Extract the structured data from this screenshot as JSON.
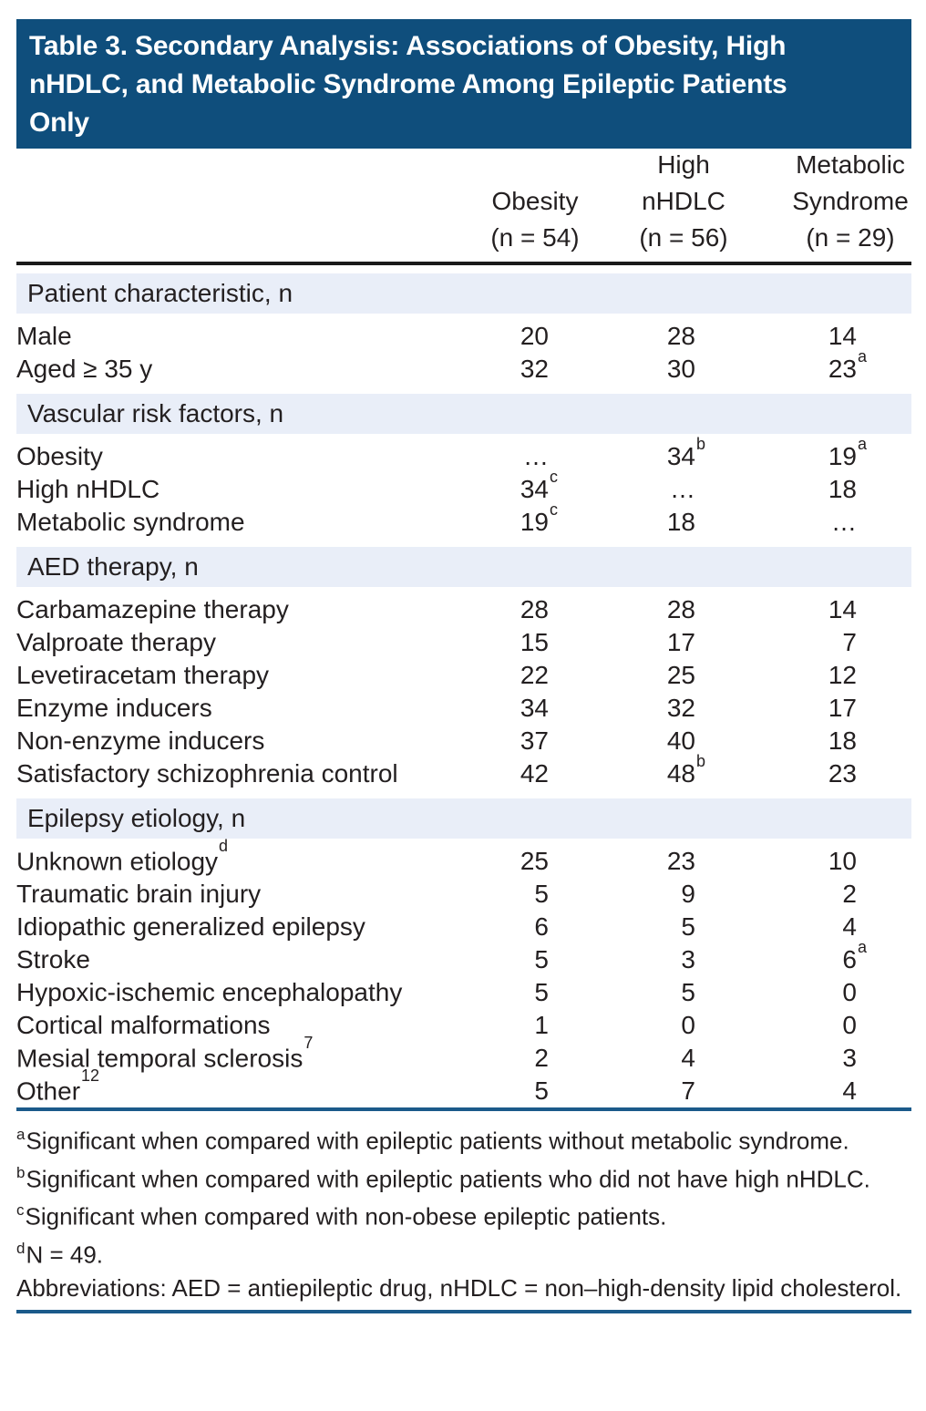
{
  "title": {
    "line1": "Table 3. Secondary Analysis: Associations of Obesity, High",
    "line2": "nHDLC, and Metabolic Syndrome Among Epileptic Patients",
    "line3": "Only"
  },
  "columns": [
    {
      "l1": "",
      "l2": "Obesity",
      "l3": "(n = 54)"
    },
    {
      "l1": "High",
      "l2": "nHDLC",
      "l3": "(n = 56)"
    },
    {
      "l1": "Metabolic",
      "l2": "Syndrome",
      "l3": "(n = 29)"
    }
  ],
  "sections": [
    {
      "header": "Patient characteristic, n",
      "rows": [
        {
          "label": "Male",
          "values": [
            {
              "v": "20"
            },
            {
              "v": "28"
            },
            {
              "v": "14"
            }
          ]
        },
        {
          "label": "Aged ≥ 35 y",
          "values": [
            {
              "v": "32"
            },
            {
              "v": "30"
            },
            {
              "v": "23",
              "s": "a"
            }
          ]
        }
      ]
    },
    {
      "header": "Vascular risk factors, n",
      "rows": [
        {
          "label": "Obesity",
          "values": [
            {
              "v": "…"
            },
            {
              "v": "34",
              "s": "b"
            },
            {
              "v": "19",
              "s": "a"
            }
          ]
        },
        {
          "label": "High nHDLC",
          "values": [
            {
              "v": "34",
              "s": "c"
            },
            {
              "v": "…"
            },
            {
              "v": "18"
            }
          ]
        },
        {
          "label": "Metabolic syndrome",
          "values": [
            {
              "v": "19",
              "s": "c"
            },
            {
              "v": "18"
            },
            {
              "v": "…"
            }
          ]
        }
      ]
    },
    {
      "header": "AED therapy, n",
      "rows": [
        {
          "label": "Carbamazepine therapy",
          "values": [
            {
              "v": "28"
            },
            {
              "v": "28"
            },
            {
              "v": "14"
            }
          ]
        },
        {
          "label": "Valproate therapy",
          "values": [
            {
              "v": "15"
            },
            {
              "v": "17"
            },
            {
              "v": "7"
            }
          ]
        },
        {
          "label": "Levetiracetam therapy",
          "values": [
            {
              "v": "22"
            },
            {
              "v": "25"
            },
            {
              "v": "12"
            }
          ]
        },
        {
          "label": "Enzyme inducers",
          "values": [
            {
              "v": "34"
            },
            {
              "v": "32"
            },
            {
              "v": "17"
            }
          ]
        },
        {
          "label": "Non-enzyme inducers",
          "values": [
            {
              "v": "37"
            },
            {
              "v": "40"
            },
            {
              "v": "18"
            }
          ]
        },
        {
          "label": "Satisfactory schizophrenia control",
          "values": [
            {
              "v": "42"
            },
            {
              "v": "48",
              "s": "b"
            },
            {
              "v": "23"
            }
          ]
        }
      ]
    },
    {
      "header": "Epilepsy etiology, n",
      "rows": [
        {
          "label": "Unknown etiology",
          "labelSup": "d",
          "values": [
            {
              "v": "25"
            },
            {
              "v": "23"
            },
            {
              "v": "10"
            }
          ]
        },
        {
          "label": "Traumatic brain injury",
          "values": [
            {
              "v": "5"
            },
            {
              "v": "9"
            },
            {
              "v": "2"
            }
          ]
        },
        {
          "label": "Idiopathic generalized epilepsy",
          "values": [
            {
              "v": "6"
            },
            {
              "v": "5"
            },
            {
              "v": "4"
            }
          ]
        },
        {
          "label": "Stroke",
          "values": [
            {
              "v": "5"
            },
            {
              "v": "3"
            },
            {
              "v": "6",
              "s": "a"
            }
          ]
        },
        {
          "label": "Hypoxic-ischemic encephalopathy",
          "values": [
            {
              "v": "5"
            },
            {
              "v": "5"
            },
            {
              "v": "0"
            }
          ]
        },
        {
          "label": "Cortical malformations",
          "values": [
            {
              "v": "1"
            },
            {
              "v": "0"
            },
            {
              "v": "0"
            }
          ]
        },
        {
          "label": "Mesial temporal sclerosis",
          "labelSup": "7",
          "values": [
            {
              "v": "2"
            },
            {
              "v": "4"
            },
            {
              "v": "3"
            }
          ]
        },
        {
          "label": "Other",
          "labelSup": "12",
          "values": [
            {
              "v": "5"
            },
            {
              "v": "7"
            },
            {
              "v": "4"
            }
          ]
        }
      ]
    }
  ],
  "footnotes": [
    {
      "marker": "a",
      "text": "Significant when compared with epileptic patients without metabolic syndrome."
    },
    {
      "marker": "b",
      "text": "Significant when compared with epileptic patients who did not have high nHDLC."
    },
    {
      "marker": "c",
      "text": "Significant when compared with non-obese epileptic patients."
    },
    {
      "marker": "d",
      "text": "N = 49."
    },
    {
      "marker": "",
      "text": "Abbreviations: AED = antiepileptic drug, nHDLC = non–high-density lipid cholesterol."
    }
  ],
  "colors": {
    "title_bg": "#0f4e7c",
    "title_text": "#ffffff",
    "section_band_bg": "#e9eef8",
    "rule_blue": "#1b5a8a",
    "rule_black": "#1a1a1a",
    "body_text": "#231f20"
  }
}
